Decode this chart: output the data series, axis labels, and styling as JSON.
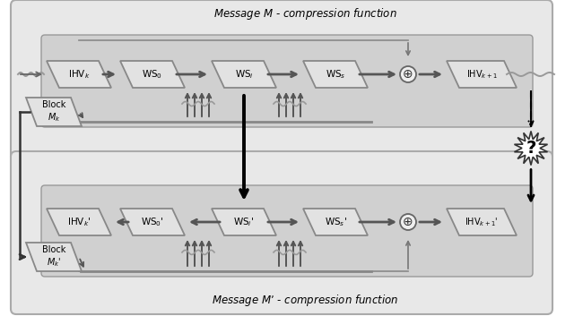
{
  "fig_width": 6.4,
  "fig_height": 3.53,
  "title1": "Message ϴ - compression function",
  "title2": "Message ϴ’ - compression function",
  "title1_text": "Message M - compression function",
  "title2_text": "Message M’ - compression function",
  "xor_symbol": "⊕",
  "outer_fc": "#e8e8e8",
  "outer_ec": "#aaaaaa",
  "inner_fc": "#d0d0d0",
  "inner_ec": "#999999",
  "box_fc": "#e0e0e0",
  "box_ec": "#888888",
  "block_fc": "#d8d8d8",
  "arrow_color": "#555555",
  "thick_arrow_color": "#555555",
  "black_arrow": "#111111",
  "wavy_color": "#999999",
  "star_fc": "white",
  "star_ec": "#333333"
}
